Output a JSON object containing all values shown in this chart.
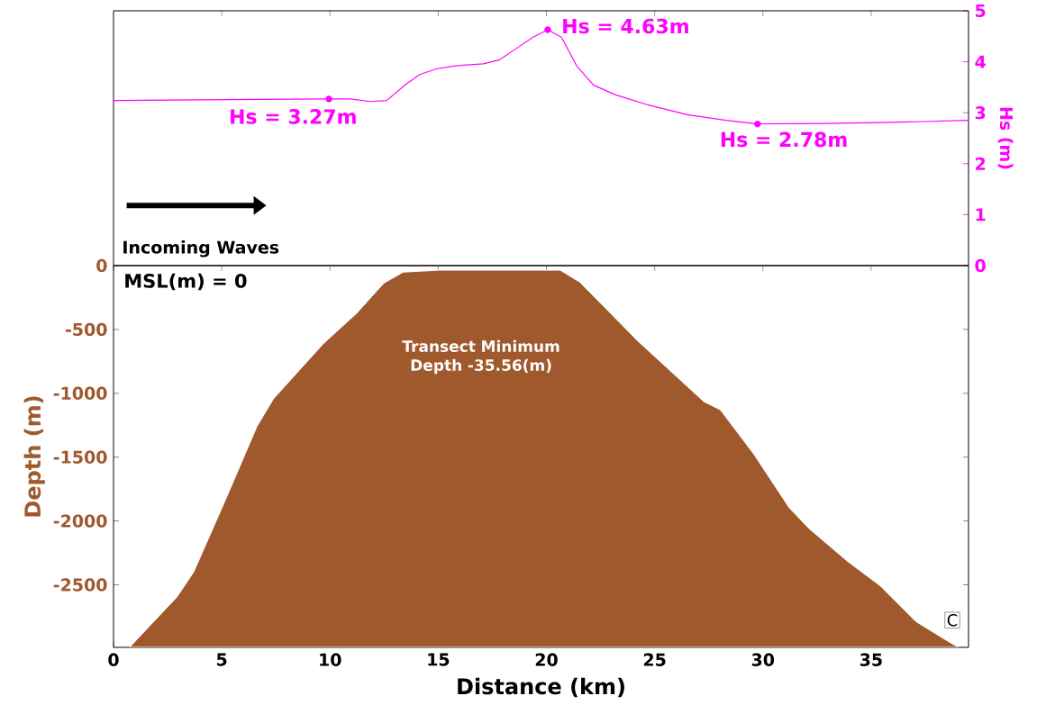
{
  "chart_data": [
    {
      "type": "line",
      "xlim": [
        0,
        39.5
      ],
      "y2lim": [
        0,
        5
      ],
      "y2ticks": [
        0,
        1,
        2,
        3,
        4,
        5
      ],
      "y2label": "Hs (m)",
      "tick_labels": "y2",
      "series": [
        {
          "axis": "y2",
          "color": "#ff00ff",
          "x": [
            0.0,
            9.95,
            10.96,
            11.86,
            12.62,
            13.51,
            14.15,
            14.91,
            15.81,
            17.08,
            17.84,
            18.61,
            19.37,
            20.06,
            20.7,
            21.41,
            22.18,
            23.2,
            24.72,
            26.51,
            28.29,
            29.75,
            32.88,
            35.94,
            39.5
          ],
          "values": [
            3.24,
            3.27,
            3.27,
            3.22,
            3.24,
            3.56,
            3.75,
            3.86,
            3.92,
            3.96,
            4.04,
            4.26,
            4.48,
            4.63,
            4.48,
            3.91,
            3.54,
            3.35,
            3.15,
            2.96,
            2.85,
            2.78,
            2.79,
            2.81,
            2.85
          ]
        },
        {
          "axis": "y2",
          "type": "scatter",
          "marker": "circle",
          "color": "#ff00ff",
          "x": [
            9.95,
            20.06,
            29.75
          ],
          "values": [
            3.27,
            4.63,
            2.78
          ]
        }
      ],
      "annotations": [
        "Hs = 3.27m",
        "Hs = 4.63m",
        "Hs = 2.78m",
        "Incoming Waves"
      ]
    },
    {
      "type": "area",
      "xlim": [
        0,
        39.5
      ],
      "ylim": [
        -2990,
        0
      ],
      "xticks": [
        0,
        5,
        10,
        15,
        20,
        25,
        30,
        35
      ],
      "yticks": [
        0,
        -500,
        -1000,
        -1500,
        -2000,
        -2500
      ],
      "xlabel": "Distance (km)",
      "ylabel": "Depth (m)",
      "color": "#a0592d",
      "x": [
        0.77,
        2.93,
        3.7,
        5.1,
        6.63,
        7.39,
        9.69,
        11.22,
        12.49,
        13.38,
        15.04,
        20.64,
        21.54,
        24.22,
        27.27,
        28.03,
        29.57,
        31.22,
        32.11,
        33.9,
        35.43,
        37.08,
        38.74,
        39.0
      ],
      "values": [
        -2984,
        -2595,
        -2401,
        -1862,
        -1258,
        -1043,
        -612,
        -375,
        -137,
        -51,
        -36,
        -36,
        -129,
        -590,
        -1065,
        -1129,
        -1474,
        -1897,
        -2056,
        -2315,
        -2509,
        -2789,
        -2962,
        -2984
      ],
      "annotations": [
        "MSL(m) = 0",
        "Transect Minimum Depth -35.56(m)",
        "C"
      ]
    }
  ]
}
